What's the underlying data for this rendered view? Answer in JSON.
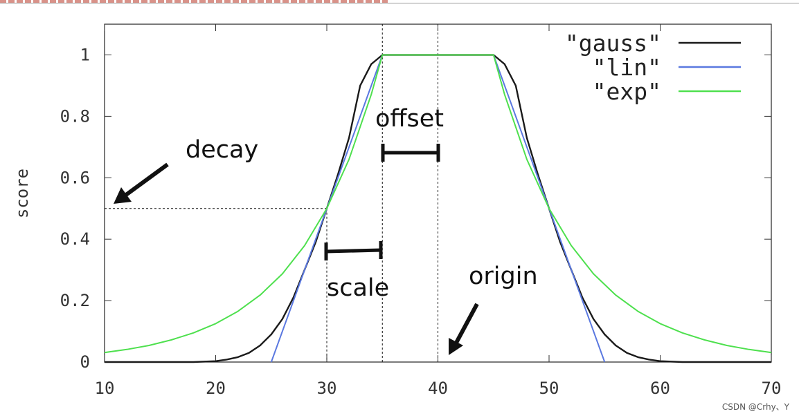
{
  "chart_data": {
    "type": "line",
    "title": "",
    "xlabel": "",
    "ylabel": "score",
    "xlim": [
      10,
      70
    ],
    "ylim": [
      0,
      1.1
    ],
    "x_ticks": [
      "10",
      "20",
      "30",
      "40",
      "50",
      "60",
      "70"
    ],
    "y_ticks": [
      "0",
      "0.2",
      "0.4",
      "0.6",
      "0.8",
      "1"
    ],
    "grid": false,
    "legend_position": "top-right",
    "series": [
      {
        "name": "\"gauss\"",
        "color": "#1a1a1a",
        "x": [
          10,
          18,
          20,
          21,
          22,
          23,
          24,
          25,
          26,
          27,
          28,
          29,
          30,
          31,
          32,
          33,
          34,
          35,
          45,
          46,
          47,
          48,
          49,
          50,
          51,
          52,
          53,
          54,
          55,
          56,
          57,
          58,
          59,
          60,
          62,
          70
        ],
        "y": [
          0,
          0,
          0.003,
          0.008,
          0.016,
          0.03,
          0.054,
          0.09,
          0.14,
          0.21,
          0.3,
          0.39,
          0.5,
          0.61,
          0.73,
          0.9,
          0.97,
          1,
          1,
          0.97,
          0.9,
          0.73,
          0.61,
          0.5,
          0.39,
          0.3,
          0.21,
          0.14,
          0.09,
          0.054,
          0.03,
          0.016,
          0.008,
          0.003,
          0,
          0
        ]
      },
      {
        "name": "\"lin\"",
        "color": "#5a78e0",
        "x": [
          25,
          35,
          45,
          55
        ],
        "y": [
          0,
          1,
          1,
          0
        ]
      },
      {
        "name": "\"exp\"",
        "color": "#4ee04e",
        "x": [
          10,
          12,
          14,
          16,
          18,
          20,
          22,
          24,
          26,
          28,
          30,
          32,
          34,
          35,
          45,
          46,
          48,
          50,
          52,
          54,
          56,
          58,
          60,
          62,
          64,
          66,
          68,
          70
        ],
        "y": [
          0.031,
          0.041,
          0.054,
          0.072,
          0.095,
          0.125,
          0.165,
          0.218,
          0.287,
          0.379,
          0.5,
          0.66,
          0.871,
          1,
          1,
          0.871,
          0.66,
          0.5,
          0.379,
          0.287,
          0.218,
          0.165,
          0.125,
          0.095,
          0.072,
          0.054,
          0.041,
          0.031
        ]
      }
    ],
    "annotations": {
      "offset": "offset",
      "decay": "decay",
      "scale": "scale",
      "origin": "origin"
    }
  },
  "watermark": "CSDN @Crhy、Y"
}
